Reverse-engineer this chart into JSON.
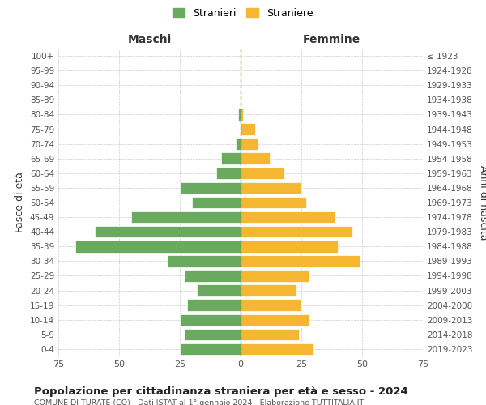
{
  "age_groups": [
    "0-4",
    "5-9",
    "10-14",
    "15-19",
    "20-24",
    "25-29",
    "30-34",
    "35-39",
    "40-44",
    "45-49",
    "50-54",
    "55-59",
    "60-64",
    "65-69",
    "70-74",
    "75-79",
    "80-84",
    "85-89",
    "90-94",
    "95-99",
    "100+"
  ],
  "birth_years": [
    "2019-2023",
    "2014-2018",
    "2009-2013",
    "2004-2008",
    "1999-2003",
    "1994-1998",
    "1989-1993",
    "1984-1988",
    "1979-1983",
    "1974-1978",
    "1969-1973",
    "1964-1968",
    "1959-1963",
    "1954-1958",
    "1949-1953",
    "1944-1948",
    "1939-1943",
    "1934-1938",
    "1929-1933",
    "1924-1928",
    "≤ 1923"
  ],
  "maschi": [
    25,
    23,
    25,
    22,
    18,
    23,
    30,
    68,
    60,
    45,
    20,
    25,
    10,
    8,
    2,
    0,
    1,
    0,
    0,
    0,
    0
  ],
  "femmine": [
    30,
    24,
    28,
    25,
    23,
    28,
    49,
    40,
    46,
    39,
    27,
    25,
    18,
    12,
    7,
    6,
    1,
    0,
    0,
    0,
    0
  ],
  "maschi_color": "#6aaa5e",
  "femmine_color": "#f5b731",
  "background_color": "#ffffff",
  "grid_color": "#cccccc",
  "title": "Popolazione per cittadinanza straniera per età e sesso - 2024",
  "subtitle": "COMUNE DI TURATE (CO) - Dati ISTAT al 1° gennaio 2024 - Elaborazione TUTTITALIA.IT",
  "xlabel_left": "Maschi",
  "xlabel_right": "Femmine",
  "ylabel_left": "Fasce di età",
  "ylabel_right": "Anni di nascita",
  "legend_maschi": "Stranieri",
  "legend_femmine": "Straniere",
  "xlim": 75,
  "dashed_line_color": "#888844"
}
